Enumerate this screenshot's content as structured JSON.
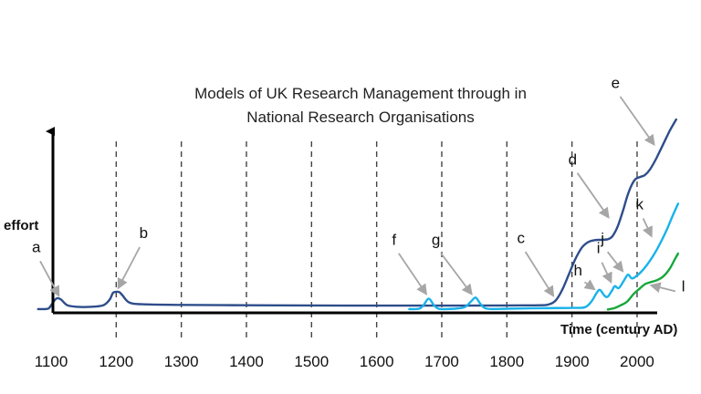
{
  "chart_data": {
    "type": "line",
    "title_lines": [
      "Models of UK Research Management through in",
      "National Research Organisations"
    ],
    "xlabel": "Time (century AD)",
    "ylabel": "effort",
    "x_ticks": [
      1100,
      1200,
      1300,
      1400,
      1500,
      1600,
      1700,
      1800,
      1900,
      2000
    ],
    "xlim": [
      1080,
      2065
    ],
    "ylim": [
      0,
      1
    ],
    "grid": "dashed vertical lines at each century",
    "legend": "none",
    "series": [
      {
        "color": "#2e4d8a",
        "x": [
          1080,
          1095,
          1100,
          1108,
          1115,
          1125,
          1140,
          1160,
          1180,
          1190,
          1195,
          1200,
          1205,
          1210,
          1220,
          1240,
          1300,
          1400,
          1500,
          1600,
          1700,
          1800,
          1850,
          1865,
          1875,
          1885,
          1895,
          1905,
          1915,
          1925,
          1935,
          1945,
          1955,
          1962,
          1970,
          1978,
          1985,
          1992,
          1998,
          2005,
          2012,
          2020,
          2030,
          2040,
          2050,
          2060
        ],
        "y": [
          0.01,
          0.012,
          0.03,
          0.065,
          0.06,
          0.03,
          0.022,
          0.022,
          0.03,
          0.06,
          0.095,
          0.1,
          0.098,
          0.08,
          0.045,
          0.035,
          0.032,
          0.03,
          0.029,
          0.028,
          0.028,
          0.029,
          0.03,
          0.035,
          0.055,
          0.11,
          0.19,
          0.27,
          0.33,
          0.36,
          0.37,
          0.372,
          0.375,
          0.39,
          0.44,
          0.52,
          0.6,
          0.66,
          0.69,
          0.7,
          0.71,
          0.74,
          0.8,
          0.87,
          0.94,
          1.0
        ]
      },
      {
        "color": "#19b2ea",
        "x": [
          1650,
          1665,
          1672,
          1680,
          1688,
          1695,
          1705,
          1720,
          1735,
          1745,
          1752,
          1760,
          1770,
          1800,
          1850,
          1900,
          1920,
          1930,
          1938,
          1943,
          1950,
          1955,
          1962,
          1966,
          1972,
          1980,
          1986,
          1992,
          1998,
          2005,
          2015,
          2025,
          2035,
          2045,
          2055,
          2063
        ],
        "y": [
          0.01,
          0.012,
          0.03,
          0.065,
          0.03,
          0.012,
          0.01,
          0.012,
          0.02,
          0.05,
          0.07,
          0.035,
          0.012,
          0.012,
          0.015,
          0.016,
          0.02,
          0.05,
          0.095,
          0.11,
          0.08,
          0.075,
          0.11,
          0.13,
          0.12,
          0.16,
          0.19,
          0.17,
          0.18,
          0.2,
          0.24,
          0.29,
          0.35,
          0.42,
          0.5,
          0.56
        ]
      },
      {
        "color": "#17a83a",
        "x": [
          1955,
          1965,
          1975,
          1985,
          1995,
          2005,
          2012,
          2020,
          2030,
          2040,
          2050,
          2058,
          2063
        ],
        "y": [
          0.008,
          0.015,
          0.03,
          0.05,
          0.09,
          0.12,
          0.14,
          0.15,
          0.16,
          0.18,
          0.22,
          0.27,
          0.3
        ]
      }
    ],
    "annotations": [
      {
        "label": "a",
        "x": 1115,
        "y": 0.06
      },
      {
        "label": "b",
        "x": 1200,
        "y": 0.1
      },
      {
        "label": "c",
        "x": 1875,
        "y": 0.06
      },
      {
        "label": "d",
        "x": 1960,
        "y": 0.47
      },
      {
        "label": "e",
        "x": 2030,
        "y": 0.85
      },
      {
        "label": "f",
        "x": 1680,
        "y": 0.07
      },
      {
        "label": "g",
        "x": 1750,
        "y": 0.07
      },
      {
        "label": "h",
        "x": 1940,
        "y": 0.1
      },
      {
        "label": "i",
        "x": 1963,
        "y": 0.13
      },
      {
        "label": "j",
        "x": 1982,
        "y": 0.19
      },
      {
        "label": "k",
        "x": 2025,
        "y": 0.37
      },
      {
        "label": "l",
        "x": 2015,
        "y": 0.14
      }
    ]
  }
}
